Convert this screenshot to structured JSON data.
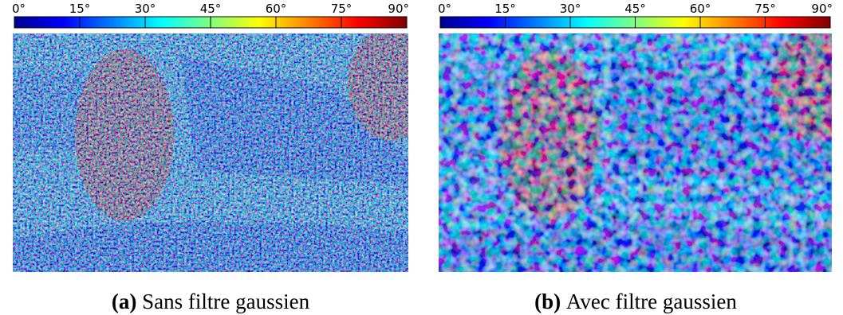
{
  "panels": [
    {
      "colorbar": {
        "range": [
          0,
          90
        ],
        "colormap": "jet",
        "ticks": [
          {
            "value": 0,
            "label": "0°"
          },
          {
            "value": 15,
            "label": "15°"
          },
          {
            "value": 30,
            "label": "30°"
          },
          {
            "value": 45,
            "label": "45°"
          },
          {
            "value": 60,
            "label": "60°"
          },
          {
            "value": 75,
            "label": "75°"
          },
          {
            "value": 90,
            "label": "90°"
          }
        ]
      },
      "caption": {
        "label": "(a)",
        "text": "Sans filtre gaussien"
      }
    },
    {
      "colorbar": {
        "range": [
          0,
          90
        ],
        "colormap": "jet",
        "ticks": [
          {
            "value": 0,
            "label": "0°"
          },
          {
            "value": 15,
            "label": "15°"
          },
          {
            "value": 30,
            "label": "30°"
          },
          {
            "value": 45,
            "label": "45°"
          },
          {
            "value": 60,
            "label": "60°"
          },
          {
            "value": 75,
            "label": "75°"
          },
          {
            "value": 90,
            "label": "90°"
          }
        ]
      },
      "caption": {
        "label": "(b)",
        "text": "Avec filtre gaussien"
      }
    }
  ]
}
